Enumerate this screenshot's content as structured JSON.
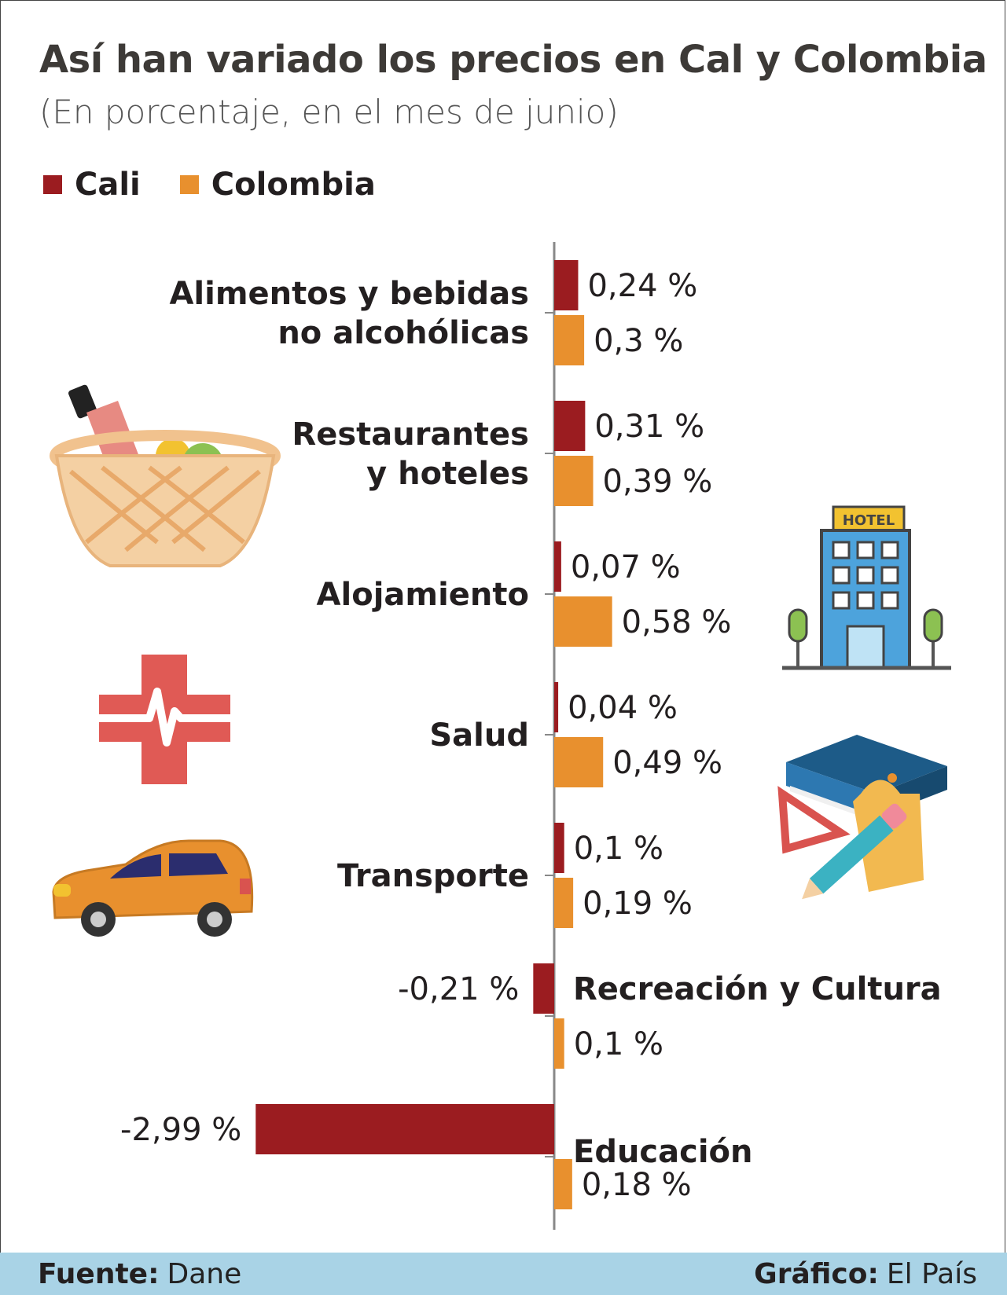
{
  "title": "Así han variado los precios en Cal y Colombia",
  "subtitle": "(En porcentaje, en el mes de junio)",
  "legend": [
    {
      "name": "Cali",
      "color": "#9b1c20"
    },
    {
      "name": "Colombia",
      "color": "#e8902e"
    }
  ],
  "footer": {
    "source_label": "Fuente:",
    "source": "Dane",
    "credit_label": "Gráfico:",
    "credit": "El País"
  },
  "chart_data": {
    "type": "bar",
    "orientation": "horizontal",
    "title": "Así han variado los precios en Cal y Colombia",
    "subtitle": "(En porcentaje, en el mes de junio)",
    "unit": "%",
    "categories": [
      [
        "Alimentos y bebidas",
        "no alcohólicas"
      ],
      [
        "Restaurantes",
        "y hoteles"
      ],
      [
        "Alojamiento"
      ],
      [
        "Salud"
      ],
      [
        "Transporte"
      ],
      [
        "Recreación y Cultura"
      ],
      [
        "Educación"
      ]
    ],
    "series": [
      {
        "name": "Cali",
        "color": "#9b1c20",
        "values": [
          0.24,
          0.31,
          0.07,
          0.04,
          0.1,
          -0.21,
          -2.99
        ],
        "labels": [
          "0,24 %",
          "0,31 %",
          "0,07 %",
          "0,04 %",
          "0,1 %",
          "-0,21 %",
          "-2,99 %"
        ]
      },
      {
        "name": "Colombia",
        "color": "#e8902e",
        "values": [
          0.3,
          0.39,
          0.58,
          0.49,
          0.19,
          0.1,
          0.18
        ],
        "labels": [
          "0,3 %",
          "0,39 %",
          "0,58 %",
          "0,49 %",
          "0,19 %",
          "0,1 %",
          "0,18 %"
        ]
      }
    ]
  },
  "icons": [
    "basket-icon",
    "hotel-icon",
    "health-cross-icon",
    "books-icon",
    "car-icon"
  ],
  "hotel_sign": "HOTEL"
}
